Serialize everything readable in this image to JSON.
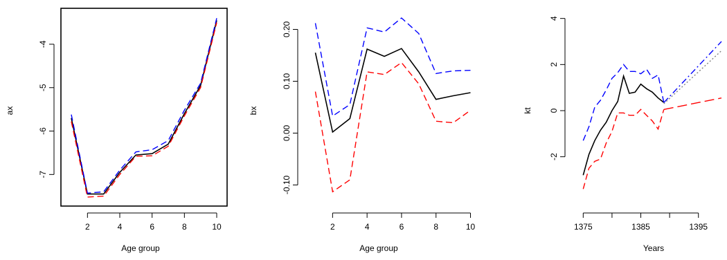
{
  "chart_data": [
    {
      "type": "line",
      "xlabel": "Age group",
      "ylabel": "ax",
      "xlim": [
        0.7,
        10.3
      ],
      "ylim": [
        -7.6,
        -3.3
      ],
      "xticks": [
        2,
        4,
        6,
        8,
        10
      ],
      "yticks": [
        -7,
        -6,
        -5,
        -4
      ],
      "x": [
        1,
        2,
        3,
        4,
        5,
        6,
        7,
        8,
        9,
        10
      ],
      "series": [
        {
          "color": "#000000",
          "dash": "solid",
          "values": [
            -5.7,
            -7.45,
            -7.45,
            -6.95,
            -6.55,
            -6.52,
            -6.3,
            -5.6,
            -4.95,
            -3.45
          ]
        },
        {
          "color": "#0000ff",
          "dash": "dashed",
          "values": [
            -5.62,
            -7.43,
            -7.4,
            -6.9,
            -6.48,
            -6.43,
            -6.22,
            -5.52,
            -4.9,
            -3.4
          ]
        },
        {
          "color": "#ff0000",
          "dash": "dashed",
          "values": [
            -5.78,
            -7.52,
            -7.5,
            -7.0,
            -6.58,
            -6.57,
            -6.35,
            -5.65,
            -5.0,
            -3.5
          ]
        }
      ]
    },
    {
      "type": "line",
      "xlabel": "Age group",
      "ylabel": "bx",
      "xlim": [
        0.7,
        10.3
      ],
      "ylim": [
        -0.13,
        0.23
      ],
      "xticks": [
        2,
        4,
        6,
        8,
        10
      ],
      "yticks": [
        -0.1,
        0.0,
        0.1,
        0.2
      ],
      "ytick_labels": [
        "-0.10",
        "0.00",
        "0.10",
        "0.20"
      ],
      "x": [
        1,
        2,
        3,
        4,
        5,
        6,
        7,
        8,
        9,
        10
      ],
      "series": [
        {
          "color": "#000000",
          "dash": "solid",
          "values": [
            0.155,
            0.002,
            0.028,
            0.162,
            0.148,
            0.163,
            0.118,
            0.065,
            0.072,
            0.078
          ]
        },
        {
          "color": "#0000ff",
          "dash": "dashed",
          "values": [
            0.212,
            0.033,
            0.055,
            0.203,
            0.195,
            0.222,
            0.192,
            0.115,
            0.12,
            0.121
          ]
        },
        {
          "color": "#ff0000",
          "dash": "dashed",
          "values": [
            0.08,
            -0.113,
            -0.09,
            0.118,
            0.113,
            0.136,
            0.095,
            0.023,
            0.02,
            0.044
          ]
        }
      ]
    },
    {
      "type": "line",
      "xlabel": "Years",
      "ylabel": "kt",
      "xlim": [
        1374,
        1399
      ],
      "ylim": [
        -3.9,
        4.2
      ],
      "xticks": [
        1375,
        1385,
        1395
      ],
      "xticks_minor": [
        1380,
        1390
      ],
      "yticks": [
        -2,
        0,
        2,
        4
      ],
      "series": [
        {
          "color": "#000000",
          "dash": "solid",
          "x": [
            1375,
            1376,
            1377,
            1378,
            1379,
            1380,
            1381,
            1382,
            1383,
            1384,
            1385,
            1386,
            1387,
            1388,
            1389
          ],
          "values": [
            -2.8,
            -1.9,
            -1.3,
            -0.85,
            -0.5,
            0.0,
            0.4,
            1.5,
            0.75,
            0.8,
            1.15,
            0.95,
            0.8,
            0.55,
            0.35
          ]
        },
        {
          "color": "#0000ff",
          "dash": "dashed",
          "x": [
            1375,
            1376,
            1377,
            1378,
            1379,
            1380,
            1381,
            1382,
            1383,
            1384,
            1385,
            1386,
            1387,
            1388,
            1389
          ],
          "values": [
            -1.3,
            -0.7,
            0.15,
            0.45,
            0.9,
            1.4,
            1.65,
            2.0,
            1.7,
            1.7,
            1.6,
            1.8,
            1.4,
            1.55,
            0.35
          ]
        },
        {
          "color": "#ff0000",
          "dash": "dashed",
          "x": [
            1375,
            1376,
            1377,
            1378,
            1379,
            1380,
            1381,
            1382,
            1383,
            1384,
            1385,
            1386,
            1387,
            1388,
            1389
          ],
          "values": [
            -3.4,
            -2.5,
            -2.2,
            -2.1,
            -1.4,
            -0.9,
            -0.1,
            -0.1,
            -0.2,
            -0.2,
            0.05,
            -0.2,
            -0.45,
            -0.8,
            0.05
          ]
        },
        {
          "color": "#0000ff",
          "dash": "dashdot",
          "x": [
            1389,
            1399
          ],
          "values": [
            0.35,
            3.0
          ]
        },
        {
          "color": "#808080",
          "dash": "dotted",
          "x": [
            1389,
            1399
          ],
          "values": [
            0.3,
            2.6
          ]
        },
        {
          "color": "#ff0000",
          "dash": "longdash",
          "x": [
            1389,
            1399
          ],
          "values": [
            0.05,
            0.55
          ]
        }
      ]
    }
  ]
}
